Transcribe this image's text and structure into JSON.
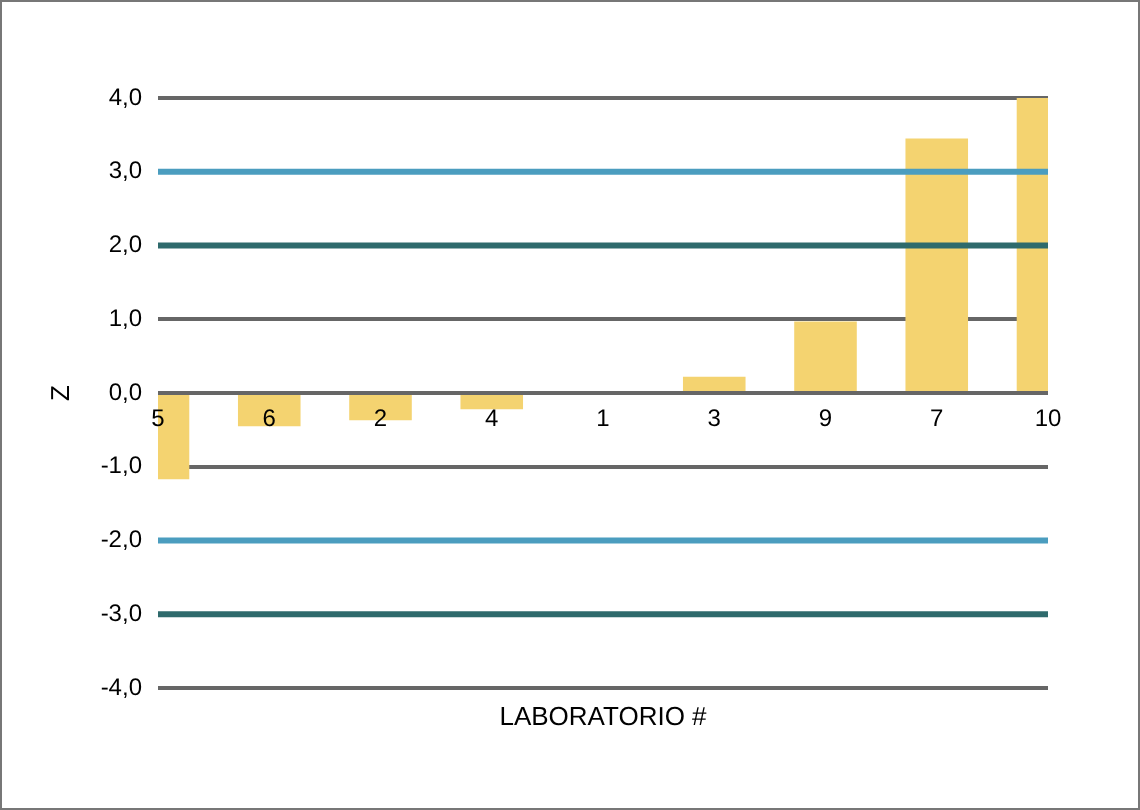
{
  "chart_data": {
    "type": "bar",
    "xlabel": "LABORATORIO #",
    "ylabel": "Z",
    "categories": [
      "5",
      "6",
      "2",
      "4",
      "1",
      "3",
      "9",
      "7",
      "10"
    ],
    "values": [
      -1.17,
      -0.45,
      -0.37,
      -0.22,
      0,
      0.22,
      0.97,
      3.45,
      4.0
    ],
    "color": "#f4d370",
    "ylim": [
      -4,
      4
    ],
    "yticks": [
      {
        "value": -4,
        "label": "-4,0"
      },
      {
        "value": -3,
        "label": "-3,0"
      },
      {
        "value": -2,
        "label": "-2,0"
      },
      {
        "value": -1,
        "label": "-1,0"
      },
      {
        "value": 0,
        "label": "0,0"
      },
      {
        "value": 1,
        "label": "1,0"
      },
      {
        "value": 2,
        "label": "2,0"
      },
      {
        "value": 3,
        "label": "3,0"
      },
      {
        "value": 4,
        "label": "4,0"
      }
    ],
    "grid": "y",
    "ref_lines": [
      {
        "axis": "y",
        "value": 3,
        "color": "#4b9dbf"
      },
      {
        "axis": "y",
        "value": 2,
        "color": "#2e6a6c"
      },
      {
        "axis": "y",
        "value": -2,
        "color": "#4b9dbf"
      },
      {
        "axis": "y",
        "value": -3,
        "color": "#2e6a6c"
      }
    ],
    "legend": false
  }
}
